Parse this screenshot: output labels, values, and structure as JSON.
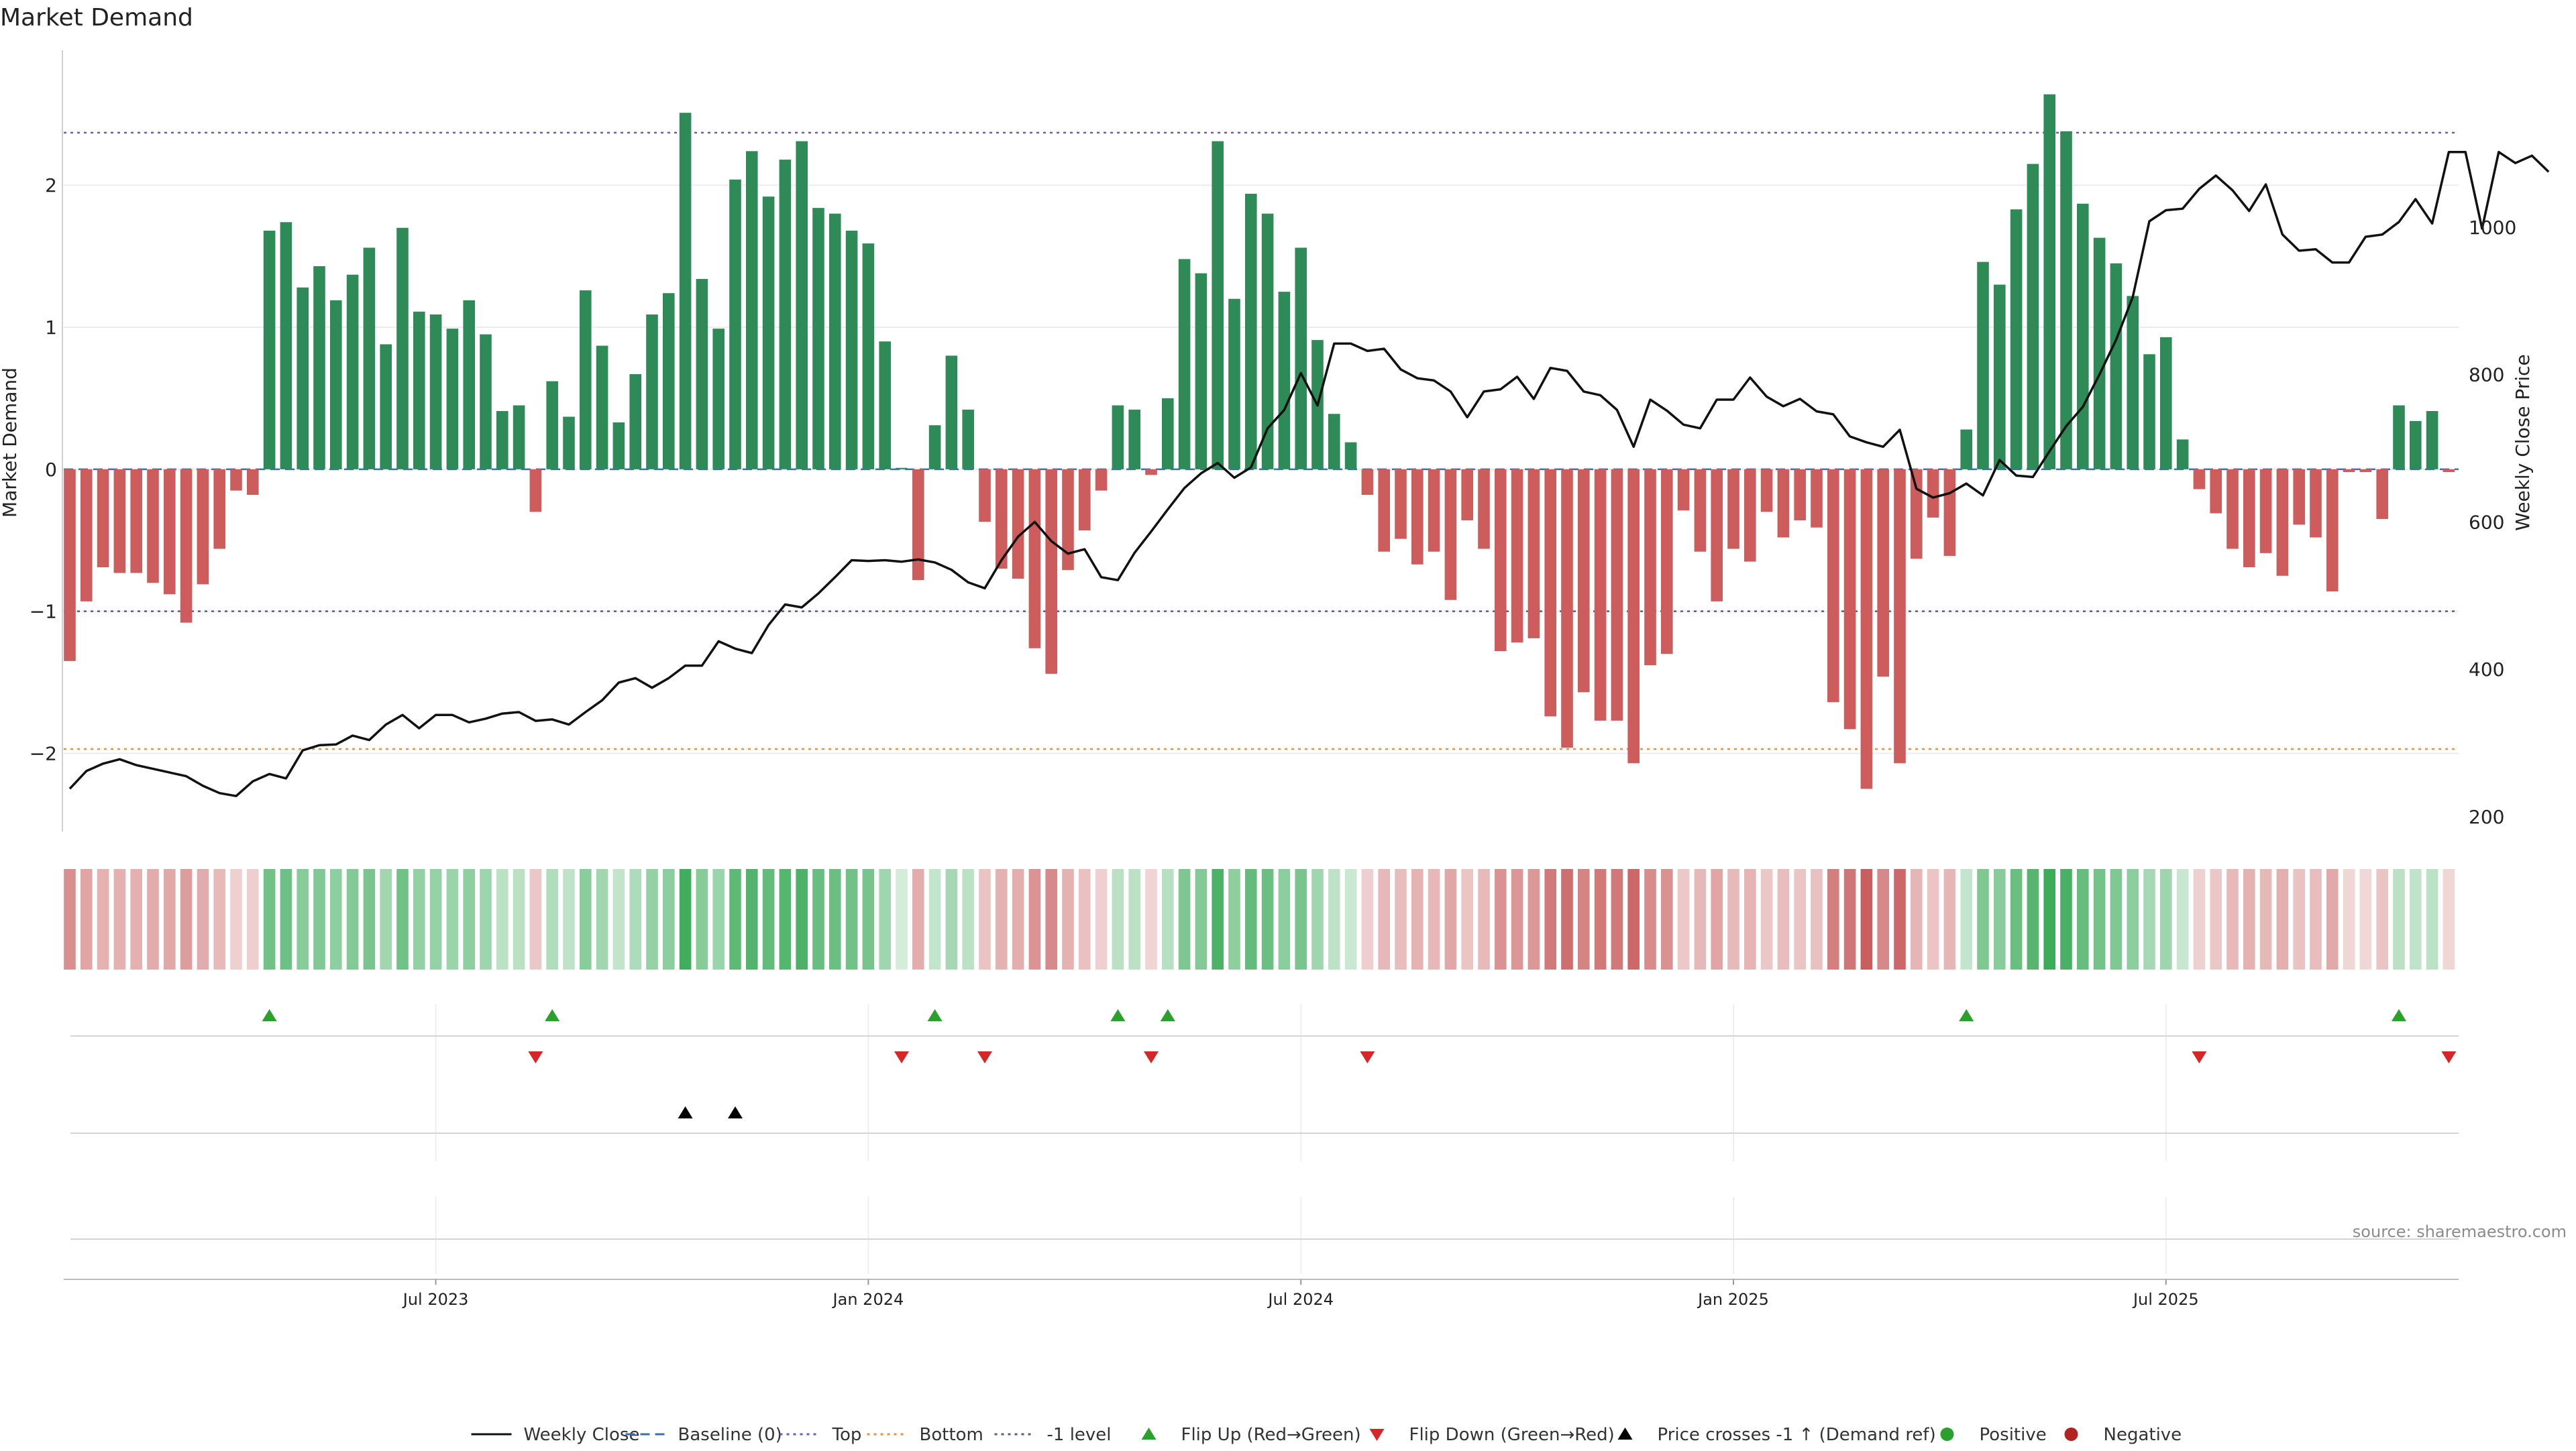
{
  "chart_data": {
    "type": "bar",
    "title": "Market Demand",
    "ylabel_left": "Market Demand",
    "ylabel_right": "Weekly Close Price",
    "left_axis": {
      "ylim": [
        -2.55,
        2.95
      ],
      "ticks": [
        -2,
        -1,
        0,
        1,
        2
      ],
      "tick_labels": [
        "−2",
        "−1",
        "0",
        "1",
        "2"
      ]
    },
    "right_axis": {
      "ylim": [
        180,
        1240
      ],
      "ticks": [
        200,
        400,
        600,
        800,
        1000
      ],
      "tick_labels": [
        "200",
        "400",
        "600",
        "800",
        "1000"
      ]
    },
    "x_ticks": [
      {
        "index": 22,
        "label": "Jul 2023"
      },
      {
        "index": 48,
        "label": "Jan 2024"
      },
      {
        "index": 74,
        "label": "Jul 2024"
      },
      {
        "index": 100,
        "label": "Jan 2025"
      },
      {
        "index": 126,
        "label": "Jul 2025"
      }
    ],
    "reference_lines": {
      "top": 2.37,
      "bottom": -1.97,
      "minus_one": -1.0,
      "baseline": 0
    },
    "demand": [
      -1.35,
      -0.93,
      -0.69,
      -0.73,
      -0.73,
      -0.8,
      -0.88,
      -1.08,
      -0.81,
      -0.56,
      -0.15,
      -0.18,
      1.68,
      1.74,
      1.28,
      1.43,
      1.19,
      1.37,
      1.56,
      0.88,
      1.7,
      1.11,
      1.09,
      0.99,
      1.19,
      0.95,
      0.41,
      0.45,
      -0.3,
      0.62,
      0.37,
      1.26,
      0.87,
      0.33,
      0.67,
      1.09,
      1.24,
      2.51,
      1.34,
      0.99,
      2.04,
      2.24,
      1.92,
      2.18,
      2.31,
      1.84,
      1.8,
      1.68,
      1.59,
      0.9,
      0.01,
      -0.78,
      0.31,
      0.8,
      0.42,
      -0.37,
      -0.7,
      -0.77,
      -1.26,
      -1.44,
      -0.71,
      -0.43,
      -0.15,
      0.45,
      0.42,
      -0.04,
      0.5,
      1.48,
      1.38,
      2.31,
      1.2,
      1.94,
      1.8,
      1.25,
      1.56,
      0.91,
      0.39,
      0.19,
      -0.18,
      -0.58,
      -0.49,
      -0.67,
      -0.58,
      -0.92,
      -0.36,
      -0.56,
      -1.28,
      -1.22,
      -1.19,
      -1.74,
      -1.96,
      -1.57,
      -1.77,
      -1.77,
      -2.07,
      -1.38,
      -1.3,
      -0.29,
      -0.58,
      -0.93,
      -0.56,
      -0.65,
      -0.3,
      -0.48,
      -0.36,
      -0.41,
      -1.64,
      -1.83,
      -2.25,
      -1.46,
      -2.07,
      -0.63,
      -0.34,
      -0.61,
      0.28,
      1.46,
      1.3,
      1.83,
      2.15,
      2.64,
      2.38,
      1.87,
      1.63,
      1.45,
      1.22,
      0.81,
      0.93,
      0.21,
      -0.14,
      -0.31,
      -0.56,
      -0.69,
      -0.59,
      -0.75,
      -0.39,
      -0.48,
      -0.86,
      -0.02,
      -0.02,
      -0.35,
      0.45,
      0.34,
      0.41,
      -0.02
    ],
    "weekly_close": [
      238,
      262,
      272,
      278,
      270,
      265,
      260,
      255,
      242,
      232,
      228,
      248,
      258,
      252,
      290,
      297,
      298,
      310,
      304,
      325,
      338,
      320,
      338,
      338,
      328,
      333,
      340,
      342,
      330,
      332,
      325,
      342,
      358,
      382,
      388,
      375,
      388,
      405,
      405,
      438,
      428,
      422,
      460,
      488,
      484,
      503,
      525,
      548,
      547,
      548,
      546,
      549,
      545,
      535,
      518,
      510,
      548,
      580,
      600,
      574,
      557,
      563,
      525,
      521,
      558,
      587,
      617,
      646,
      666,
      680,
      660,
      674,
      727,
      752,
      802,
      758,
      842,
      842,
      832,
      835,
      807,
      795,
      792,
      777,
      742,
      777,
      780,
      797,
      767,
      809,
      805,
      777,
      772,
      752,
      702,
      766,
      751,
      732,
      727,
      766,
      766,
      796,
      770,
      757,
      767,
      750,
      746,
      716,
      708,
      702,
      725,
      645,
      633,
      639,
      652,
      636,
      684,
      663,
      661,
      696,
      730,
      756,
      800,
      847,
      905,
      1008,
      1023,
      1025,
      1052,
      1070,
      1050,
      1022,
      1058,
      990,
      968,
      970,
      952,
      952,
      987,
      990,
      1007,
      1038,
      1005,
      1102,
      1102,
      998,
      1102,
      1087,
      1097,
      1075
    ],
    "flip_up_indices": [
      12,
      29,
      52,
      63,
      66,
      114,
      140
    ],
    "flip_down_indices": [
      28,
      50,
      55,
      65,
      78,
      128,
      143
    ],
    "price_cross_indices": [
      37,
      40
    ],
    "positive_indices": [],
    "negative_indices": [],
    "source": "source: sharemaestro.com",
    "legend": [
      {
        "label": "Weekly Close",
        "kind": "line-solid",
        "color": "#111111"
      },
      {
        "label": "Baseline (0)",
        "kind": "line-dashed",
        "color": "#3a6fb0"
      },
      {
        "label": "Top",
        "kind": "line-dotted",
        "color": "#6a5acd"
      },
      {
        "label": "Bottom",
        "kind": "line-dotted",
        "color": "#e8903a"
      },
      {
        "label": "-1 level",
        "kind": "line-dotted",
        "color": "#5a5a8a"
      },
      {
        "label": "Flip Up (Red→Green)",
        "kind": "tri-up",
        "color": "#2ca02c"
      },
      {
        "label": "Flip Down (Green→Red)",
        "kind": "tri-down",
        "color": "#d62728"
      },
      {
        "label": "Price crosses -1 ↑ (Demand ref)",
        "kind": "tri-up",
        "color": "#000000"
      },
      {
        "label": "Positive",
        "kind": "dot",
        "color": "#2ca02c"
      },
      {
        "label": "Negative",
        "kind": "dot",
        "color": "#b22222"
      }
    ],
    "colors": {
      "positive_bar": "#2e8b57",
      "negative_bar": "#cd5c5c",
      "heat_green": "#3cab5a",
      "heat_red": "#c24b4b"
    }
  }
}
